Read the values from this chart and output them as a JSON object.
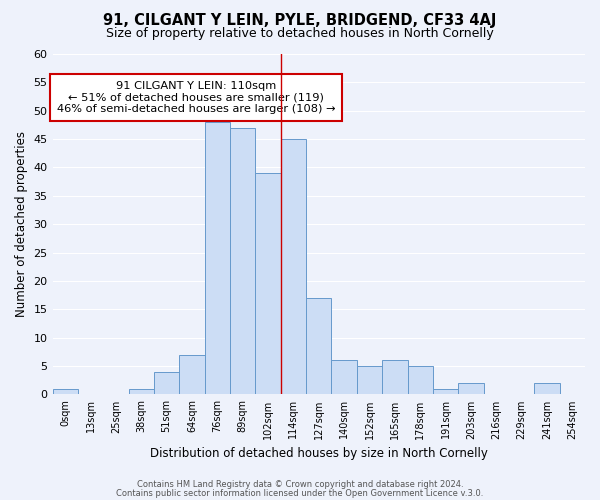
{
  "title": "91, CILGANT Y LEIN, PYLE, BRIDGEND, CF33 4AJ",
  "subtitle": "Size of property relative to detached houses in North Cornelly",
  "xlabel": "Distribution of detached houses by size in North Cornelly",
  "ylabel": "Number of detached properties",
  "bar_labels": [
    "0sqm",
    "13sqm",
    "25sqm",
    "38sqm",
    "51sqm",
    "64sqm",
    "76sqm",
    "89sqm",
    "102sqm",
    "114sqm",
    "127sqm",
    "140sqm",
    "152sqm",
    "165sqm",
    "178sqm",
    "191sqm",
    "203sqm",
    "216sqm",
    "229sqm",
    "241sqm",
    "254sqm"
  ],
  "bar_values": [
    1,
    0,
    0,
    1,
    4,
    7,
    48,
    47,
    39,
    45,
    17,
    6,
    5,
    6,
    5,
    1,
    2,
    0,
    0,
    2,
    0
  ],
  "bar_color": "#ccddf5",
  "bar_edge_color": "#6699cc",
  "ylim": [
    0,
    60
  ],
  "yticks": [
    0,
    5,
    10,
    15,
    20,
    25,
    30,
    35,
    40,
    45,
    50,
    55,
    60
  ],
  "annotation_title": "91 CILGANT Y LEIN: 110sqm",
  "annotation_line1": "← 51% of detached houses are smaller (119)",
  "annotation_line2": "46% of semi-detached houses are larger (108) →",
  "footer_line1": "Contains HM Land Registry data © Crown copyright and database right 2024.",
  "footer_line2": "Contains public sector information licensed under the Open Government Licence v.3.0.",
  "bg_color": "#eef2fb",
  "grid_color": "#ffffff"
}
